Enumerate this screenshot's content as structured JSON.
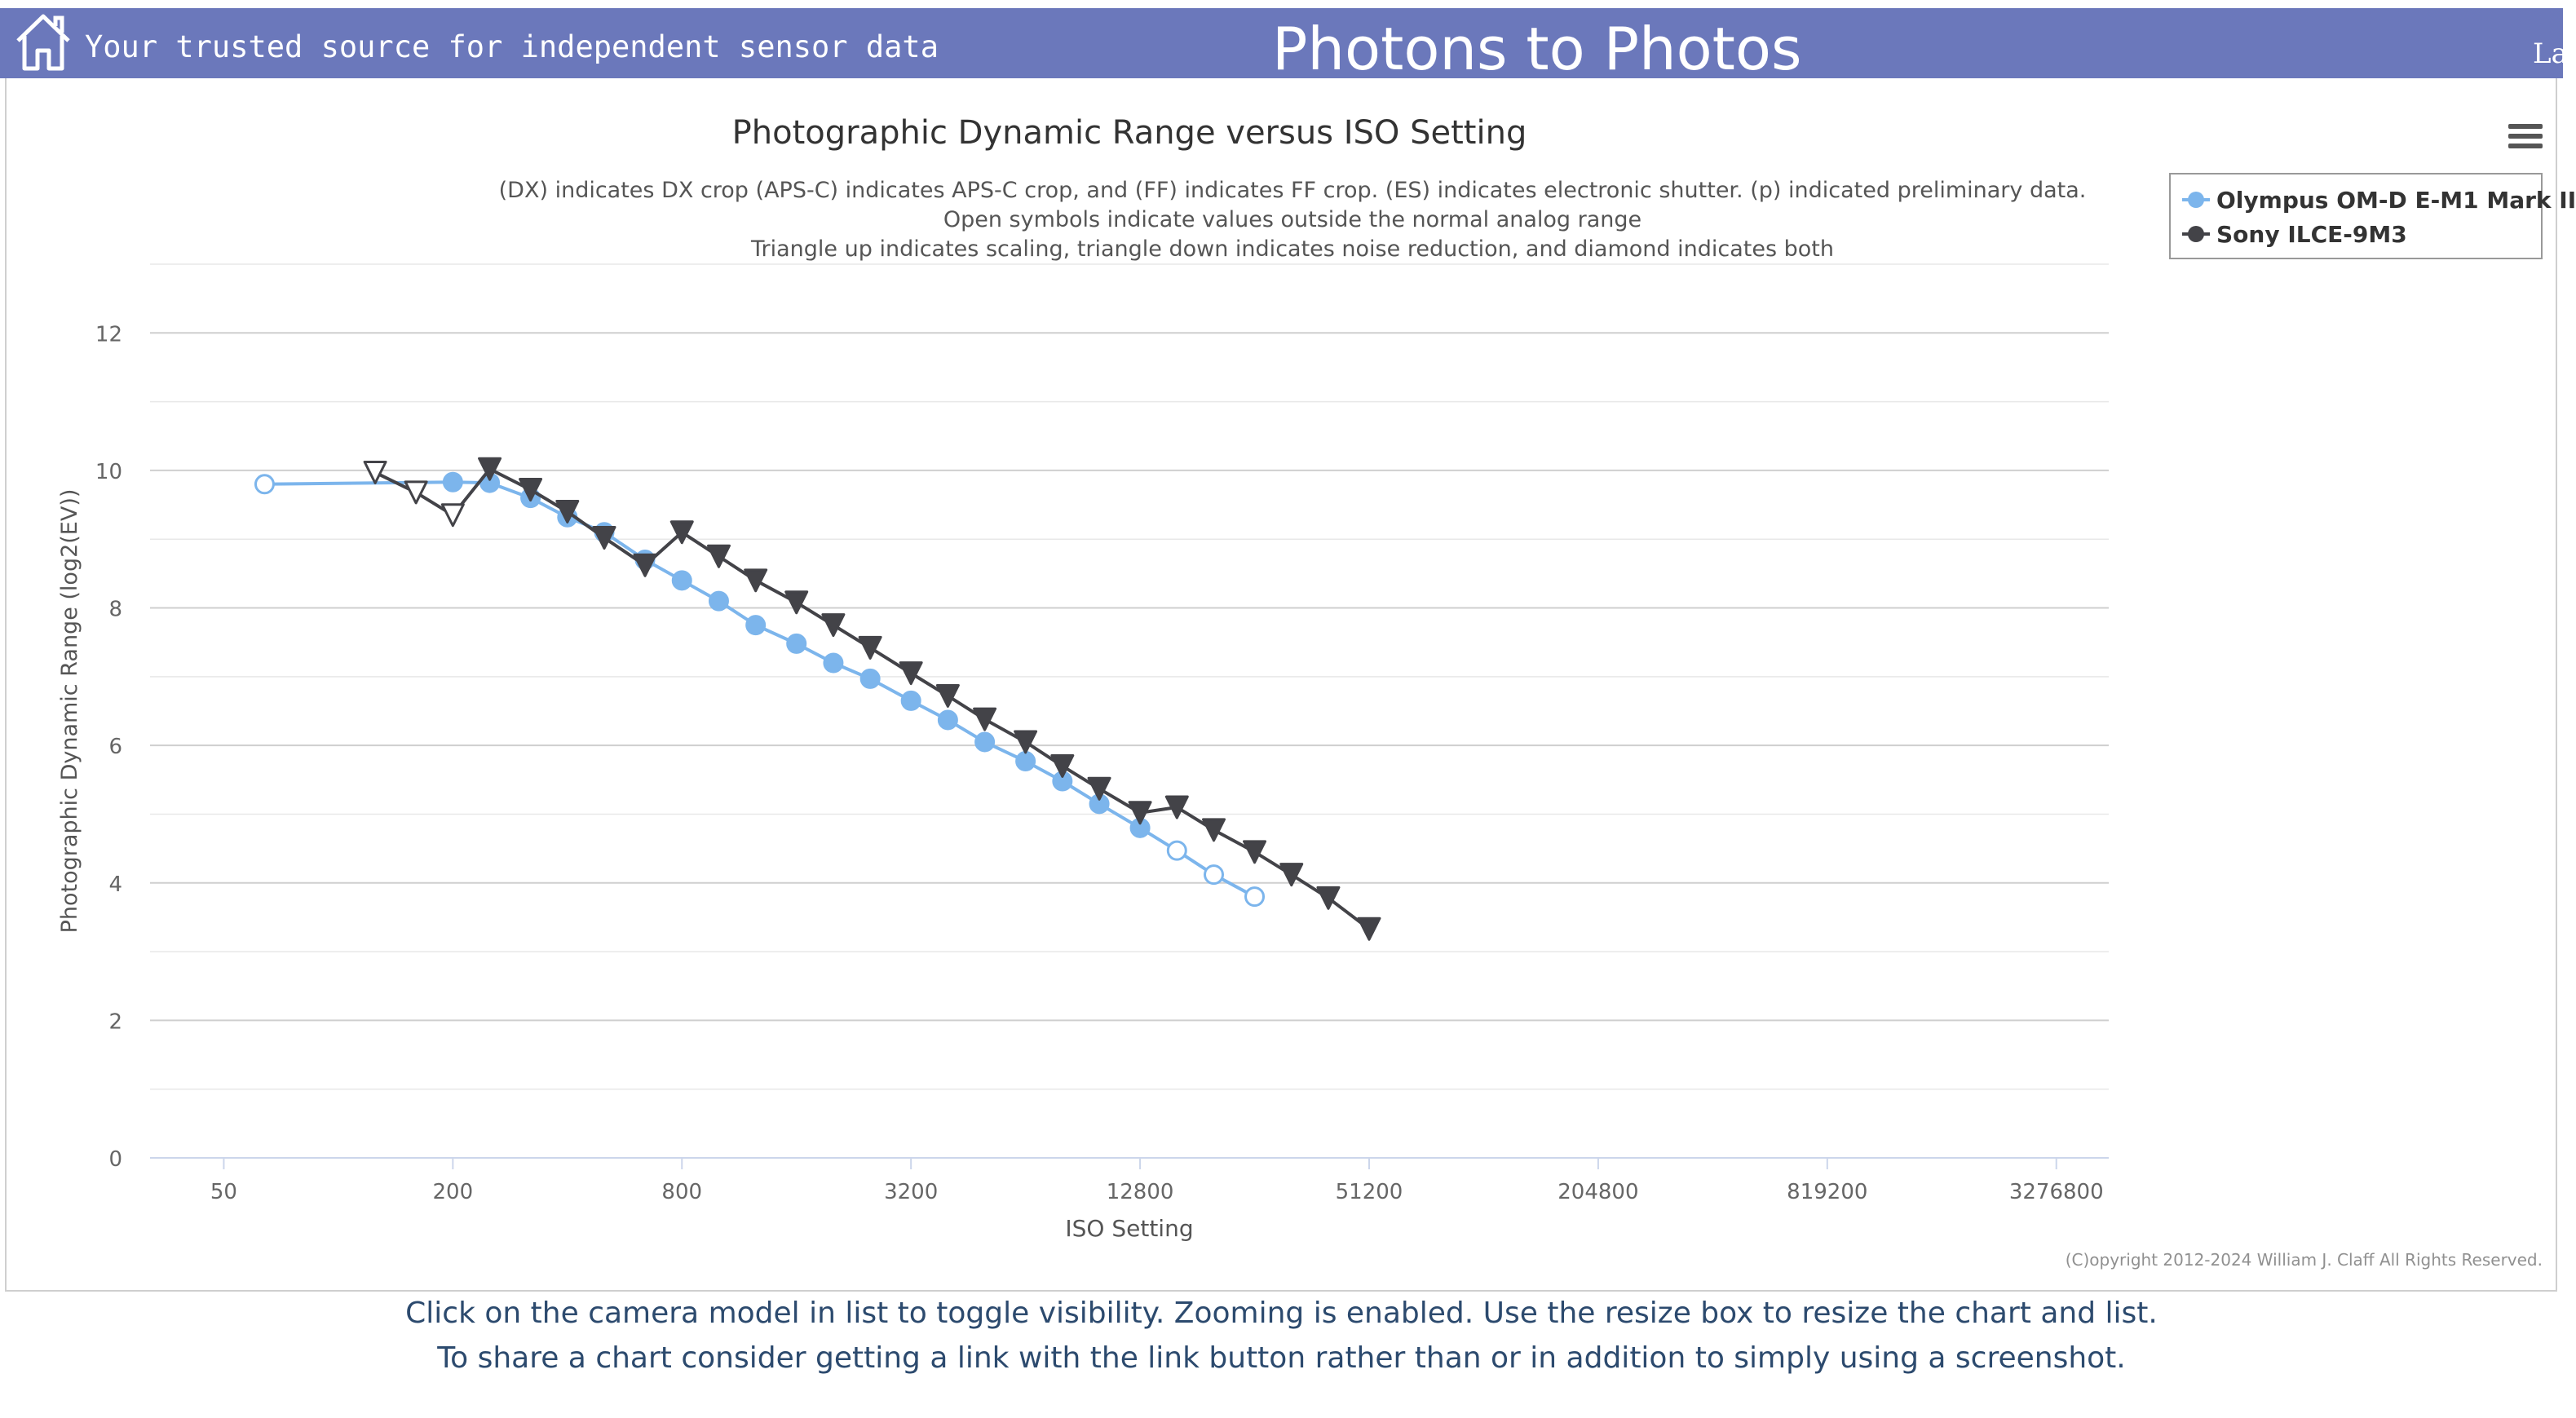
{
  "header": {
    "tagline": "Your trusted source for independent sensor data",
    "site_title": "Photons to Photos",
    "lang_fragment": "La"
  },
  "chart_data": {
    "type": "line",
    "title": "Photographic Dynamic Range versus ISO Setting",
    "subtitle_lines": [
      "(DX) indicates DX crop (APS-C) indicates APS-C crop, and (FF) indicates FF crop. (ES) indicates electronic shutter. (p) indicated preliminary data.",
      "Open symbols indicate values outside the normal analog range",
      "Triangle up indicates scaling, triangle down indicates noise reduction, and diamond indicates both"
    ],
    "xlabel": "ISO Setting",
    "ylabel": "Photographic Dynamic Range (log2(EV))",
    "x_scale": "log2",
    "x_ticks": [
      50,
      200,
      800,
      3200,
      12800,
      51200,
      204800,
      819200,
      3276800
    ],
    "x_tick_labels": [
      "50",
      "200",
      "800",
      "3200",
      "12800",
      "51200",
      "204800",
      "819200",
      "3276800"
    ],
    "xlim": [
      32,
      4500000
    ],
    "y_ticks": [
      0,
      2,
      4,
      6,
      8,
      10,
      12
    ],
    "ylim": [
      0,
      13
    ],
    "grid": true,
    "legend_placement": "top-right",
    "series": [
      {
        "name": "Olympus OM-D E-M1 Mark II",
        "color": "#7cb5ec",
        "marker": "circle",
        "points": [
          {
            "x": 64,
            "y": 9.8,
            "open": true
          },
          {
            "x": 200,
            "y": 9.83,
            "open": false
          },
          {
            "x": 250,
            "y": 9.82,
            "open": false
          },
          {
            "x": 320,
            "y": 9.6,
            "open": false
          },
          {
            "x": 400,
            "y": 9.32,
            "open": false
          },
          {
            "x": 500,
            "y": 9.1,
            "open": false
          },
          {
            "x": 640,
            "y": 8.7,
            "open": false
          },
          {
            "x": 800,
            "y": 8.4,
            "open": false
          },
          {
            "x": 1000,
            "y": 8.1,
            "open": false
          },
          {
            "x": 1250,
            "y": 7.75,
            "open": false
          },
          {
            "x": 1600,
            "y": 7.48,
            "open": false
          },
          {
            "x": 2000,
            "y": 7.2,
            "open": false
          },
          {
            "x": 2500,
            "y": 6.97,
            "open": false
          },
          {
            "x": 3200,
            "y": 6.65,
            "open": false
          },
          {
            "x": 4000,
            "y": 6.37,
            "open": false
          },
          {
            "x": 5000,
            "y": 6.05,
            "open": false
          },
          {
            "x": 6400,
            "y": 5.77,
            "open": false
          },
          {
            "x": 8000,
            "y": 5.48,
            "open": false
          },
          {
            "x": 10000,
            "y": 5.15,
            "open": false
          },
          {
            "x": 12800,
            "y": 4.8,
            "open": false
          },
          {
            "x": 16000,
            "y": 4.47,
            "open": true
          },
          {
            "x": 20000,
            "y": 4.12,
            "open": true
          },
          {
            "x": 25600,
            "y": 3.8,
            "open": true
          }
        ]
      },
      {
        "name": "Sony ILCE-9M3",
        "color": "#434348",
        "marker": "triangle-down",
        "points": [
          {
            "x": 125,
            "y": 9.97,
            "open": true
          },
          {
            "x": 160,
            "y": 9.68,
            "open": true
          },
          {
            "x": 200,
            "y": 9.35,
            "open": true
          },
          {
            "x": 250,
            "y": 10.02,
            "open": false
          },
          {
            "x": 320,
            "y": 9.72,
            "open": false
          },
          {
            "x": 400,
            "y": 9.4,
            "open": false
          },
          {
            "x": 500,
            "y": 9.02,
            "open": false
          },
          {
            "x": 640,
            "y": 8.62,
            "open": false
          },
          {
            "x": 800,
            "y": 9.1,
            "open": false
          },
          {
            "x": 1000,
            "y": 8.75,
            "open": false
          },
          {
            "x": 1250,
            "y": 8.4,
            "open": false
          },
          {
            "x": 1600,
            "y": 8.08,
            "open": false
          },
          {
            "x": 2000,
            "y": 7.75,
            "open": false
          },
          {
            "x": 2500,
            "y": 7.42,
            "open": false
          },
          {
            "x": 3200,
            "y": 7.05,
            "open": false
          },
          {
            "x": 4000,
            "y": 6.72,
            "open": false
          },
          {
            "x": 5000,
            "y": 6.38,
            "open": false
          },
          {
            "x": 6400,
            "y": 6.05,
            "open": false
          },
          {
            "x": 8000,
            "y": 5.7,
            "open": false
          },
          {
            "x": 10000,
            "y": 5.37,
            "open": false
          },
          {
            "x": 12800,
            "y": 5.02,
            "open": false
          },
          {
            "x": 16000,
            "y": 5.1,
            "open": false
          },
          {
            "x": 20000,
            "y": 4.77,
            "open": false
          },
          {
            "x": 25600,
            "y": 4.45,
            "open": false
          },
          {
            "x": 32000,
            "y": 4.12,
            "open": false
          },
          {
            "x": 40000,
            "y": 3.78,
            "open": false
          },
          {
            "x": 51200,
            "y": 3.33,
            "open": false
          }
        ]
      }
    ]
  },
  "copyright": "(C)opyright 2012-2024 William J. Claff All Rights Reserved.",
  "footer": {
    "line1": "Click on the camera model in list to toggle visibility. Zooming is enabled. Use the resize box to resize the chart and list.",
    "line2": "To share a chart consider getting a link with the link button rather than or in addition to simply using a screenshot."
  },
  "colors": {
    "header_bg": "#6b78bb",
    "footer_text": "#2c4a6e",
    "grid": "#e6e6e6"
  }
}
